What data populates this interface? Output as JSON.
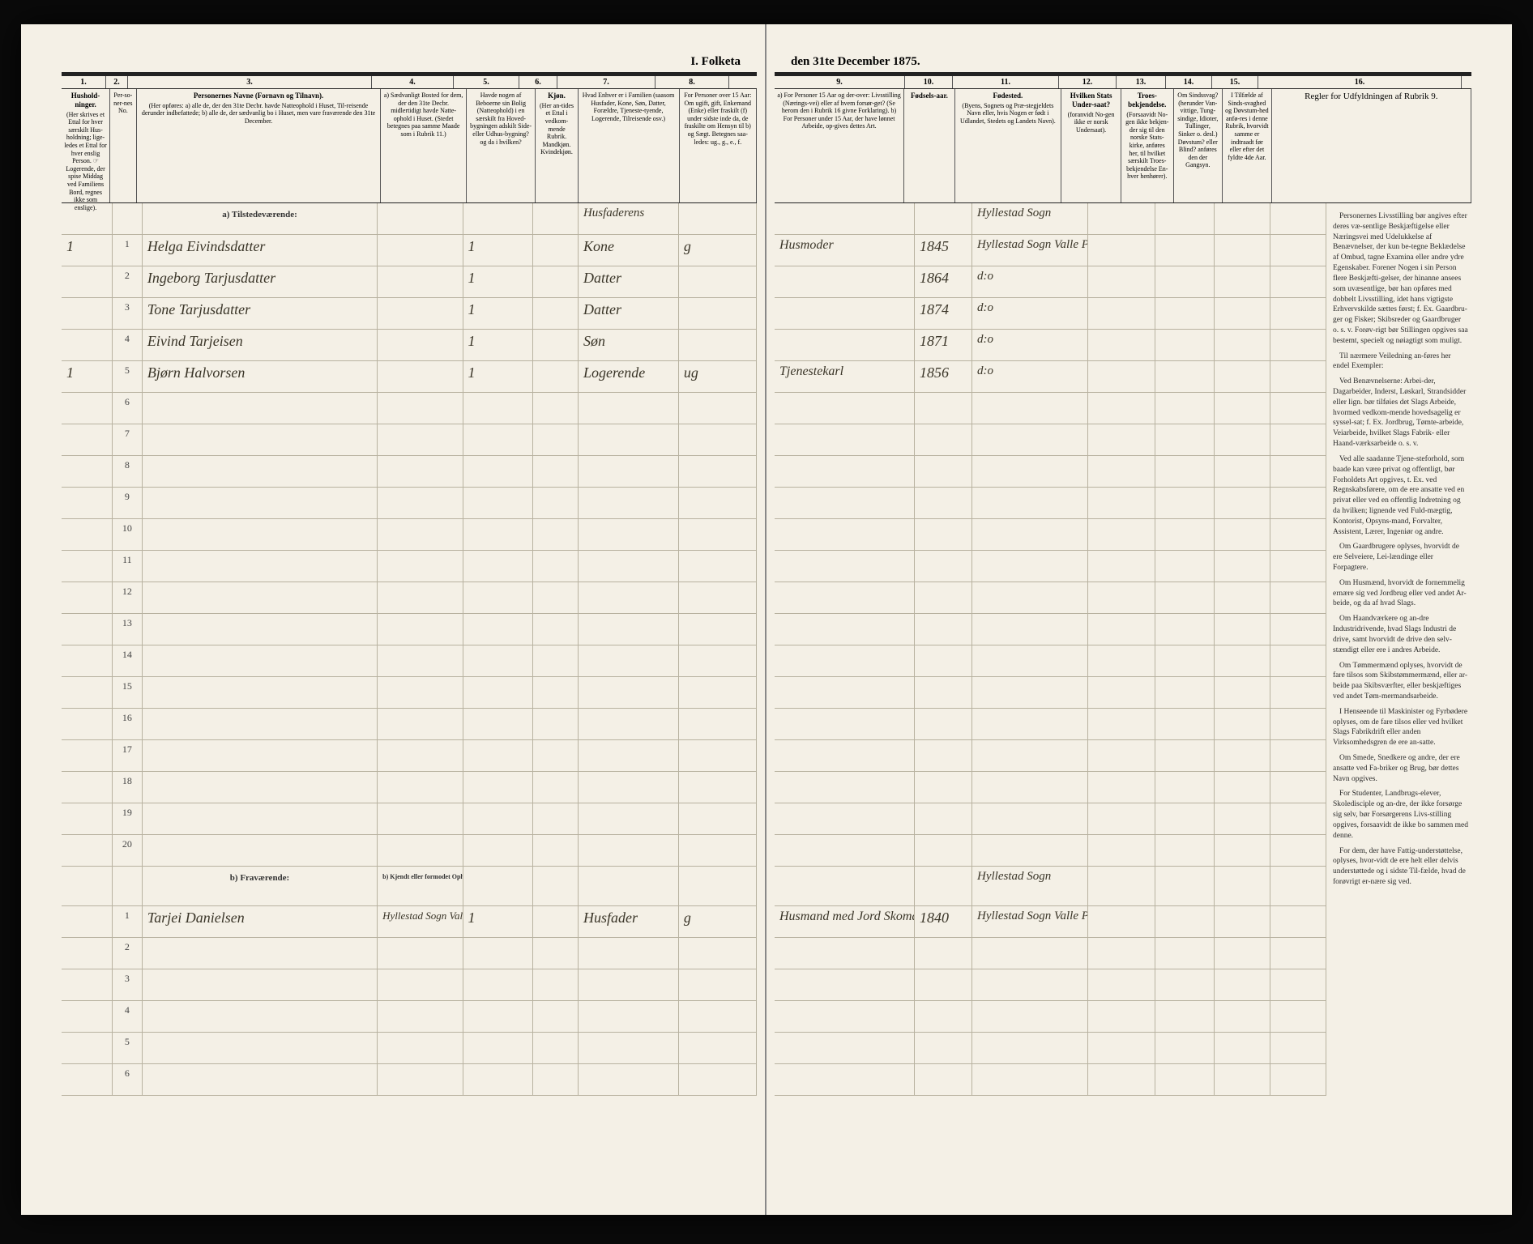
{
  "title_left": "I. Folketa",
  "title_right": "den 31te December 1875.",
  "columns_left": [
    {
      "num": "1.",
      "head": "Hushold-\nninger.",
      "sub": "(Her skrives et Ettal for hver særskilt Hus-holdning; lige-ledes et Ettal for hver enslig Person. ☞ Logerende, der spise Middag ved Familiens Bord, regnes ikke som enslige)."
    },
    {
      "num": "2.",
      "head": "",
      "sub": "Per-so-ner-nes No."
    },
    {
      "num": "3.",
      "head": "Personernes Navne (Fornavn og Tilnavn).",
      "sub": "(Her opføres:\na) alle de, der den 31te Decbr. havde Natteophold i Huset, Til-reisende derunder indbefattede;\nb) alle de, der sædvanlig bo i Huset, men vare fraværende den 31te December."
    },
    {
      "num": "4.",
      "head": "",
      "sub": "a) Sædvanligt Bosted for dem, der den 31te Decbr. midlertidigt havde Natte-ophold i Huset. (Stedet betegnes paa samme Maade som i Rubrik 11.)"
    },
    {
      "num": "5.",
      "head": "",
      "sub": "Havde nogen af Beboerne sin Bolig (Natteophold) i en særskilt fra Hoved-bygningen adskilt Side- eller Udhus-bygning? og da i hvilken?"
    },
    {
      "num": "6.",
      "head": "Kjøn.",
      "sub": "(Her an-tides et Ettal i vedkom-mende Rubrik. Mandkjøn. Kvindekjøn."
    },
    {
      "num": "7.",
      "head": "",
      "sub": "Hvad Enhver er i Familien (saasom Husfader, Kone, Søn, Datter, Forældre, Tjeneste-tyende, Logerende, Tilreisende osv.)"
    },
    {
      "num": "8.",
      "head": "",
      "sub": "For Personer over 15 Aar: Om ugift, gift, Enkemand (Enke) eller fraskilt (f) under sidste inde da, de fraskilte om Hensyn til b) og Sægt. Betegnes saa-ledes: ug., g., e., f."
    }
  ],
  "columns_right": [
    {
      "num": "9.",
      "head": "",
      "sub": "a) For Personer 15 Aar og der-over: Livsstilling (Nærings-vei) eller af hvem forsør-get? (Se herom den i Rubrik 16 givne Forklaring).\nb) For Personer under 15 Aar, der have lønnet Arbeide, op-gives dettes Art."
    },
    {
      "num": "10.",
      "head": "Fødsels-aar.",
      "sub": ""
    },
    {
      "num": "11.",
      "head": "Fødested.",
      "sub": "(Byens, Sognets og Præ-stegjeldets Navn eller, hvis Nogen er født i Udlandet, Stedets og Landets Navn)."
    },
    {
      "num": "12.",
      "head": "Hvilken Stats Under-saat?",
      "sub": "(foranvidt No-gen ikke er norsk Undersaat)."
    },
    {
      "num": "13.",
      "head": "Troes-bekjendelse.",
      "sub": "(Forsaavidt No-gen ikke bekjen-der sig til den norske Stats-kirke, anføres her, til hvilket særskilt Troes-bekjendelse En-hver henhører)."
    },
    {
      "num": "14.",
      "head": "",
      "sub": "Om Sindssvag? (herunder Van-vittige, Tung-sindige, Idioter, Tullinger, Sinker o. desl.) Døvstum? eller Blind? anføres den der Gangsyn."
    },
    {
      "num": "15.",
      "head": "",
      "sub": "I Tilfælde af Sinds-svaghed og Døvstum-hed anfø-res i denne Rubrik, hvorvidt samme er indtraadt før eller efter det fyldte 4de Aar."
    },
    {
      "num": "16.",
      "head": "",
      "sub": "Regler for Udfyldningen af Rubrik 9."
    }
  ],
  "section_a": "a) Tilstedeværende:",
  "section_b": "b) Fraværende:",
  "section_b_sub": "b) Kjendt eller formodet Opholdssted.",
  "rows_a": [
    {
      "n": "1",
      "hh": "1",
      "name": "Helga Eivindsdatter",
      "c5": "1",
      "sex": "",
      "fam": "Kone",
      "stat": "g",
      "occ": "Husmoder",
      "year": "1845",
      "place": "Hyllestad Sogn Valle Prostej"
    },
    {
      "n": "2",
      "hh": "",
      "name": "Ingeborg Tarjusdatter",
      "c5": "1",
      "sex": "",
      "fam": "Datter",
      "stat": "",
      "occ": "",
      "year": "1864",
      "place": "d:o"
    },
    {
      "n": "3",
      "hh": "",
      "name": "Tone Tarjusdatter",
      "c5": "1",
      "sex": "",
      "fam": "Datter",
      "stat": "",
      "occ": "",
      "year": "1874",
      "place": "d:o"
    },
    {
      "n": "4",
      "hh": "",
      "name": "Eivind Tarjeisen",
      "c5": "1",
      "sex": "",
      "fam": "Søn",
      "stat": "",
      "occ": "",
      "year": "1871",
      "place": "d:o"
    },
    {
      "n": "5",
      "hh": "1",
      "name": "Bjørn Halvorsen",
      "c5": "1",
      "sex": "",
      "fam": "Logerende",
      "stat": "ug",
      "occ": "Tjenestekarl",
      "year": "1856",
      "place": "d:o"
    }
  ],
  "rows_a_empty": [
    "6",
    "7",
    "8",
    "9",
    "10",
    "11",
    "12",
    "13",
    "14",
    "15",
    "16",
    "17",
    "18",
    "19",
    "20"
  ],
  "rows_b": [
    {
      "n": "1",
      "hh": "",
      "name": "Tarjei Danielsen",
      "c4": "Hyllestad Sogn Valle Prostej",
      "c5": "1",
      "fam": "Husfader",
      "stat": "g",
      "occ": "Husmand med Jord Skomager",
      "year": "1840",
      "place": "Hyllestad Sogn Valle Prostj."
    }
  ],
  "rows_b_empty": [
    "2",
    "3",
    "4",
    "5",
    "6"
  ],
  "instructions_title": "",
  "instructions": [
    "Personernes Livsstilling bør angives efter deres væ-sentlige Beskjæftigelse eller Næringsvei med Udelukkelse af Benævnelser, der kun be-tegne Beklædelse af Ombud, tagne Examina eller andre ydre Egenskaber. Forener Nogen i sin Person flere Beskjæfti-gelser, der hinanne ansees som uvæsentlige, bør han opføres med dobbelt Livsstilling, idet hans vigtigste Erhvervskilde sættes først; f. Ex. Gaardbru-ger og Fisker; Skibsreder og Gaardbruger o. s. v. Forøv-rigt bør Stillingen opgives saa bestemt, specielt og nøiagtigt som muligt.",
    "Til nærmere Veiledning an-føres her endel Exempler:",
    "Ved Benævnelserne: Arbei-der, Dagarbeider, Inderst, Løskarl, Strandsidder eller lign. bør tilføies det Slags Arbeide, hvormed vedkom-mende hovedsagelig er syssel-sat; f. Ex. Jordbrug, Tømte-arbeide, Veiarbeide, hvilket Slags Fabrik- eller Haand-værksarbeide o. s. v.",
    "Ved alle saadanne Tjene-steforhold, som baade kan være privat og offentligt, bør Forholdets Art opgives, t. Ex. ved Regnskabsførere, om de ere ansatte ved en privat eller ved en offentlig Indretning og da hvilken; lignende ved Fuld-mægtig, Kontorist, Opsyns-mand, Forvalter, Assistent, Lærer, Ingeniør og andre.",
    "Om Gaardbrugere oplyses, hvorvidt de ere Selveiere, Lei-lændinge eller Forpagtere.",
    "Om Husmænd, hvorvidt de fornemmelig ernære sig ved Jordbrug eller ved andet Ar-beide, og da af hvad Slags.",
    "Om Haandværkere og an-dre Industridrivende, hvad Slags Industri de drive, samt hvorvidt de drive den selv-stændigt eller ere i andres Arbeide.",
    "Om Tømmermænd oplyses, hvorvidt de fare tilsos som Skibstømmermænd, eller ar-beide paa Skibsværfter, eller beskjæftiges ved andet Tøm-mermandsarbeide.",
    "I Henseende til Maskinister og Fyrbødere oplyses, om de fare tilsos eller ved hvilket Slags Fabrikdrift eller anden Virksomhedsgren de ere an-satte.",
    "Om Smede, Snedkere og andre, der ere ansatte ved Fa-briker og Brug, bør dettes Navn opgives.",
    "For Studenter, Landbrugs-elever, Skoledisciple og an-dre, der ikke forsørge sig selv, bør Forsørgerens Livs-stilling opgives, forsaavidt de ikke bo sammen med denne.",
    "For dem, der have Fattig-understøttelse, oplyses, hvor-vidt de ere helt eller delvis understøttede og i sidste Til-fælde, hvad de forøvrigt er-nære sig ved."
  ]
}
